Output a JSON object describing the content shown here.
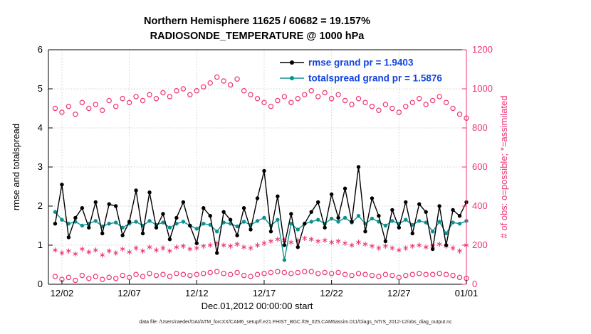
{
  "chart_data": {
    "type": "line",
    "title": "Northern Hemisphere 11625 / 60682 = 19.157%",
    "subtitle": "RADIOSONDE_TEMPERATURE @ 1000 hPa",
    "xlabel": "Dec.01,2012 00:00:00 start",
    "ylabel_left": "rmse and totalspread",
    "ylabel_right": "# of obs: o=possible; *=assimilated",
    "footer": "data file: /Users/raeder/DAI/ATM_forcXX/CAM6_setup/f.e21.FHIST_BGC.f09_025.CAM6assim.011/Diags_NTrS_2012-12/obs_diag_output.nc",
    "grid": true,
    "legend": {
      "position": "top-center-inside",
      "text_color": "#1144dd",
      "entries": [
        {
          "series_index": 0,
          "label": "rmse grand pr = 1.9403"
        },
        {
          "series_index": 1,
          "label": "totalspread grand pr = 1.5876"
        }
      ]
    },
    "colors": {
      "pink": "#ee3377",
      "teal": "#0f9090",
      "axis": "#000000",
      "grid": "#d0d0d0",
      "legend_text": "#1144dd"
    },
    "x_max_days": 31,
    "x_ticks": [
      {
        "day": 1,
        "label": "12/02"
      },
      {
        "day": 6,
        "label": "12/07"
      },
      {
        "day": 11,
        "label": "12/12"
      },
      {
        "day": 16,
        "label": "12/17"
      },
      {
        "day": 21,
        "label": "12/22"
      },
      {
        "day": 26,
        "label": "12/27"
      },
      {
        "day": 31,
        "label": "01/01"
      }
    ],
    "y_left": {
      "min": 0,
      "max": 6,
      "ticks": [
        0,
        1,
        2,
        3,
        4,
        5,
        6
      ]
    },
    "y_right": {
      "min": 0,
      "max": 1200,
      "ticks": [
        0,
        200,
        400,
        600,
        800,
        1000,
        1200
      ]
    },
    "x_days": [
      0.5,
      1,
      1.5,
      2,
      2.5,
      3,
      3.5,
      4,
      4.5,
      5,
      5.5,
      6,
      6.5,
      7,
      7.5,
      8,
      8.5,
      9,
      9.5,
      10,
      10.5,
      11,
      11.5,
      12,
      12.5,
      13,
      13.5,
      14,
      14.5,
      15,
      15.5,
      16,
      16.5,
      17,
      17.5,
      18,
      18.5,
      19,
      19.5,
      20,
      20.5,
      21,
      21.5,
      22,
      22.5,
      23,
      23.5,
      24,
      24.5,
      25,
      25.5,
      26,
      26.5,
      27,
      27.5,
      28,
      28.5,
      29,
      29.5,
      30,
      30.5,
      31
    ],
    "series": [
      {
        "id": "rmse",
        "label": "rmse grand pr = 1.9403",
        "axis": "left",
        "marker": "line-dot",
        "color": "#000000",
        "values": [
          1.55,
          2.55,
          1.2,
          1.7,
          1.95,
          1.45,
          2.1,
          1.3,
          2.05,
          2.0,
          1.25,
          1.6,
          2.4,
          1.3,
          2.35,
          1.45,
          1.8,
          1.15,
          1.7,
          2.1,
          1.5,
          1.05,
          1.95,
          1.75,
          0.8,
          1.85,
          1.65,
          1.25,
          1.95,
          1.4,
          2.2,
          2.9,
          1.35,
          2.25,
          1.0,
          1.8,
          0.95,
          1.55,
          1.85,
          2.1,
          1.45,
          2.3,
          1.7,
          2.45,
          1.6,
          3.0,
          1.35,
          2.2,
          1.75,
          1.1,
          1.9,
          1.45,
          2.1,
          1.3,
          2.05,
          1.85,
          0.9,
          2.0,
          1.0,
          1.9,
          1.75,
          2.1
        ]
      },
      {
        "id": "totalspread",
        "label": "totalspread grand pr = 1.5876",
        "axis": "left",
        "marker": "line-dot",
        "color": "#0f9090",
        "values": [
          1.85,
          1.65,
          1.55,
          1.6,
          1.5,
          1.55,
          1.62,
          1.48,
          1.55,
          1.58,
          1.45,
          1.55,
          1.6,
          1.5,
          1.62,
          1.52,
          1.58,
          1.45,
          1.55,
          1.6,
          1.5,
          1.42,
          1.55,
          1.52,
          1.35,
          1.58,
          1.55,
          1.48,
          1.6,
          1.52,
          1.62,
          1.7,
          1.5,
          1.65,
          0.62,
          1.55,
          1.4,
          1.55,
          1.6,
          1.65,
          1.55,
          1.68,
          1.6,
          1.7,
          1.58,
          1.75,
          1.55,
          1.68,
          1.6,
          1.5,
          1.62,
          1.55,
          1.65,
          1.52,
          1.62,
          1.58,
          1.35,
          1.6,
          1.3,
          1.58,
          1.55,
          1.62
        ]
      },
      {
        "id": "n-possible",
        "label": "o=possible",
        "axis": "right",
        "marker": "open-circle",
        "color": "#ee3377",
        "values": [
          900,
          880,
          910,
          870,
          930,
          900,
          920,
          890,
          940,
          910,
          950,
          930,
          960,
          940,
          970,
          950,
          980,
          960,
          990,
          1000,
          970,
          990,
          1010,
          1030,
          1060,
          1040,
          1020,
          1050,
          990,
          970,
          950,
          930,
          910,
          940,
          960,
          930,
          950,
          970,
          990,
          960,
          980,
          950,
          970,
          940,
          920,
          950,
          930,
          910,
          890,
          920,
          900,
          880,
          910,
          930,
          950,
          920,
          940,
          960,
          930,
          900,
          870,
          850
        ]
      },
      {
        "id": "n-assimilated",
        "label": "*=assimilated",
        "axis": "right",
        "marker": "asterisk",
        "color": "#ee3377",
        "values": [
          175,
          160,
          170,
          155,
          180,
          165,
          175,
          150,
          170,
          160,
          180,
          165,
          185,
          170,
          190,
          175,
          185,
          170,
          190,
          195,
          180,
          185,
          195,
          200,
          210,
          200,
          195,
          205,
          190,
          185,
          200,
          210,
          220,
          230,
          225,
          215,
          225,
          235,
          230,
          220,
          225,
          215,
          220,
          210,
          200,
          215,
          205,
          195,
          185,
          195,
          185,
          175,
          185,
          195,
          200,
          190,
          195,
          205,
          195,
          185,
          170,
          200
        ]
      },
      {
        "id": "n-lower-band",
        "label": "unlabeled circles near zero",
        "axis": "right",
        "marker": "open-circle",
        "color": "#ee3377",
        "values": [
          40,
          25,
          35,
          20,
          45,
          30,
          40,
          25,
          35,
          30,
          45,
          35,
          50,
          40,
          55,
          45,
          50,
          40,
          55,
          50,
          45,
          50,
          55,
          60,
          65,
          55,
          50,
          60,
          45,
          40,
          50,
          55,
          60,
          65,
          60,
          55,
          60,
          65,
          65,
          55,
          60,
          55,
          60,
          50,
          45,
          55,
          50,
          45,
          40,
          50,
          45,
          35,
          45,
          50,
          55,
          50,
          50,
          55,
          50,
          45,
          35,
          30
        ]
      }
    ]
  }
}
